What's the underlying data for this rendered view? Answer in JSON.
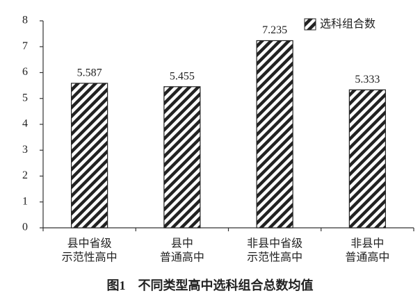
{
  "chart_data": {
    "type": "bar",
    "title": "图1　不同类型高中选科组合总数均值",
    "categories": [
      [
        "县中省级",
        "示范性高中"
      ],
      [
        "县中",
        "普通高中"
      ],
      [
        "非县中省级",
        "示范性高中"
      ],
      [
        "非县中",
        "普通高中"
      ]
    ],
    "series": [
      {
        "name": "选科组合数",
        "color": "#222222",
        "values": [
          5.587,
          5.455,
          7.235,
          5.333
        ]
      }
    ],
    "ylim": [
      0,
      8
    ],
    "yticks": [
      0,
      1,
      2,
      3,
      4,
      5,
      6,
      7,
      8
    ],
    "grid": false,
    "legend": "top-right"
  }
}
